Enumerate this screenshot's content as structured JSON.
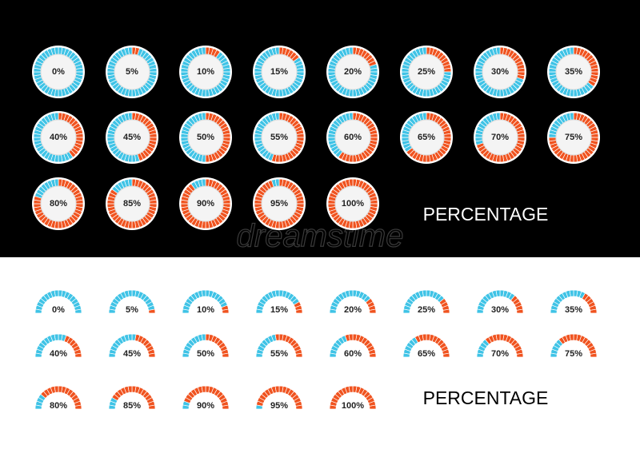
{
  "watermark": "dreamstime",
  "top": {
    "title": "PERCENTAGE",
    "gauges": [
      {
        "value": 0,
        "label": "0%"
      },
      {
        "value": 5,
        "label": "5%"
      },
      {
        "value": 10,
        "label": "10%"
      },
      {
        "value": 15,
        "label": "15%"
      },
      {
        "value": 20,
        "label": "20%"
      },
      {
        "value": 25,
        "label": "25%"
      },
      {
        "value": 30,
        "label": "30%"
      },
      {
        "value": 35,
        "label": "35%"
      },
      {
        "value": 40,
        "label": "40%"
      },
      {
        "value": 45,
        "label": "45%"
      },
      {
        "value": 50,
        "label": "50%"
      },
      {
        "value": 55,
        "label": "55%"
      },
      {
        "value": 60,
        "label": "60%"
      },
      {
        "value": 65,
        "label": "65%"
      },
      {
        "value": 70,
        "label": "70%"
      },
      {
        "value": 75,
        "label": "75%"
      },
      {
        "value": 80,
        "label": "80%"
      },
      {
        "value": 85,
        "label": "85%"
      },
      {
        "value": 90,
        "label": "90%"
      },
      {
        "value": 95,
        "label": "95%"
      },
      {
        "value": 100,
        "label": "100%"
      }
    ]
  },
  "bottom": {
    "title": "PERCENTAGE",
    "gauges": [
      {
        "value": 0,
        "label": "0%"
      },
      {
        "value": 5,
        "label": "5%"
      },
      {
        "value": 10,
        "label": "10%"
      },
      {
        "value": 15,
        "label": "15%"
      },
      {
        "value": 20,
        "label": "20%"
      },
      {
        "value": 25,
        "label": "25%"
      },
      {
        "value": 30,
        "label": "30%"
      },
      {
        "value": 35,
        "label": "35%"
      },
      {
        "value": 40,
        "label": "40%"
      },
      {
        "value": 45,
        "label": "45%"
      },
      {
        "value": 50,
        "label": "50%"
      },
      {
        "value": 55,
        "label": "55%"
      },
      {
        "value": 60,
        "label": "60%"
      },
      {
        "value": 65,
        "label": "65%"
      },
      {
        "value": 70,
        "label": "70%"
      },
      {
        "value": 75,
        "label": "75%"
      },
      {
        "value": 80,
        "label": "80%"
      },
      {
        "value": 85,
        "label": "85%"
      },
      {
        "value": 90,
        "label": "90%"
      },
      {
        "value": 95,
        "label": "95%"
      },
      {
        "value": 100,
        "label": "100%"
      }
    ]
  }
}
